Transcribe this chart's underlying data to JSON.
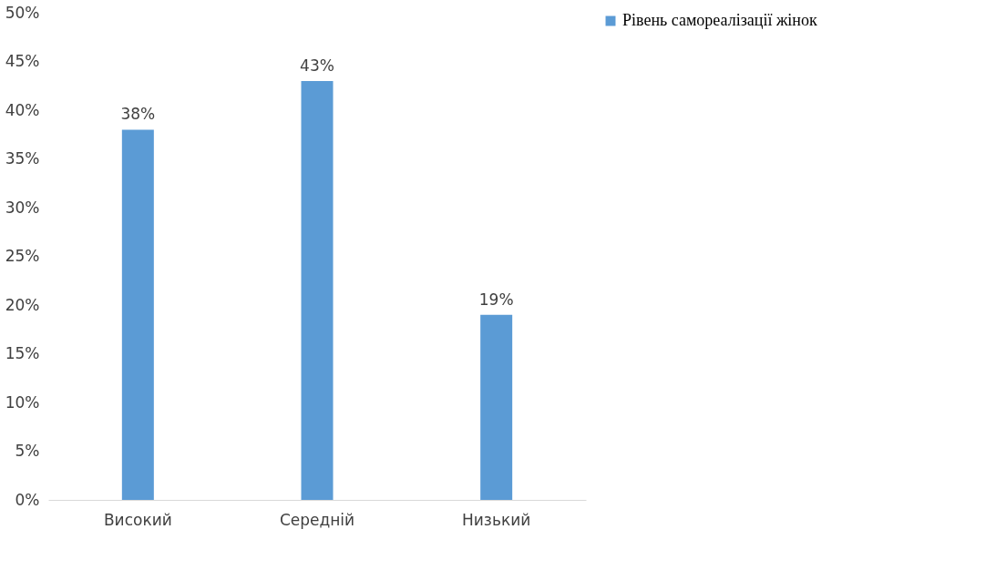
{
  "chart_data": {
    "type": "bar",
    "categories": [
      "Високий",
      "Середній",
      "Низький"
    ],
    "series": [
      {
        "name": "Рівень самореалізації жінок",
        "color": "#5b9bd5",
        "values": [
          38,
          43,
          19
        ],
        "value_labels": [
          "38%",
          "43%",
          "19%"
        ]
      }
    ],
    "ylim": [
      0,
      50
    ],
    "yticks": [
      {
        "value": 0,
        "label": "0%"
      },
      {
        "value": 5,
        "label": "5%"
      },
      {
        "value": 10,
        "label": "10%"
      },
      {
        "value": 15,
        "label": "15%"
      },
      {
        "value": 20,
        "label": "20%"
      },
      {
        "value": 25,
        "label": "25%"
      },
      {
        "value": 30,
        "label": "30%"
      },
      {
        "value": 35,
        "label": "35%"
      },
      {
        "value": 40,
        "label": "40%"
      },
      {
        "value": 45,
        "label": "45%"
      },
      {
        "value": 50,
        "label": "50%"
      }
    ],
    "grid": false,
    "legend": "right"
  }
}
